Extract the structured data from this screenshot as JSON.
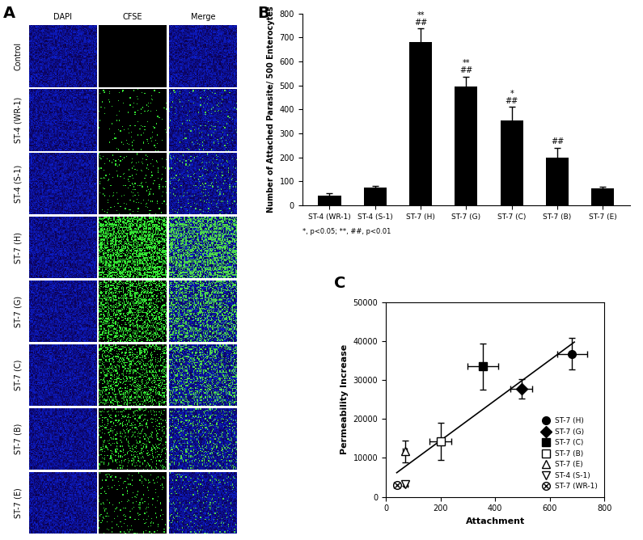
{
  "panel_a": {
    "letter": "A",
    "columns": [
      "DAPI",
      "CFSE",
      "Merge"
    ],
    "rows": [
      "Control",
      "ST-4 (WR-1)",
      "ST-4 (S-1)",
      "ST-7 (H)",
      "ST-7 (G)",
      "ST-7 (C)",
      "ST-7 (B)",
      "ST-7 (E)"
    ]
  },
  "chart_data": [
    {
      "type": "bar",
      "letter": "B",
      "categories": [
        "ST-4 (WR-1)",
        "ST-4 (S-1)",
        "ST-7 (H)",
        "ST-7 (G)",
        "ST-7 (C)",
        "ST-7 (B)",
        "ST-7 (E)"
      ],
      "values": [
        40,
        72,
        682,
        497,
        355,
        200,
        70
      ],
      "errors": [
        10,
        8,
        55,
        40,
        55,
        40,
        8
      ],
      "annotations": [
        null,
        null,
        "**\n##",
        "**\n##",
        "*\n##",
        "##",
        null
      ],
      "color": "#000000",
      "ylabel": "Number of Attached Parasite/ 500 Enterocytes",
      "footnote": "*, p<0.05; **, ##, p<0.01",
      "ylim": [
        0,
        800
      ],
      "yticks": [
        0,
        100,
        200,
        300,
        400,
        500,
        600,
        700,
        800
      ]
    },
    {
      "type": "scatter",
      "letter": "C",
      "xlabel": "Attachment",
      "ylabel": "Permeability Increase",
      "xlim": [
        0,
        800
      ],
      "xticks": [
        0,
        200,
        400,
        600,
        800
      ],
      "ylim": [
        0,
        50000
      ],
      "yticks": [
        0,
        10000,
        20000,
        30000,
        40000,
        50000
      ],
      "legend": "lower right",
      "series": [
        {
          "name": "ST-7 (H)",
          "x": [
            682
          ],
          "values": [
            36800
          ],
          "xerr": [
            55
          ],
          "yerr": [
            4000
          ],
          "marker": "circle",
          "color": "#000000"
        },
        {
          "name": "ST-7 (G)",
          "x": [
            497
          ],
          "values": [
            27800
          ],
          "xerr": [
            40
          ],
          "yerr": [
            2500
          ],
          "marker": "diamond",
          "color": "#000000"
        },
        {
          "name": "ST-7 (C)",
          "x": [
            355
          ],
          "values": [
            33500
          ],
          "xerr": [
            55
          ],
          "yerr": [
            6000
          ],
          "marker": "square",
          "color": "#000000"
        },
        {
          "name": "ST-7 (B)",
          "x": [
            200
          ],
          "values": [
            14200
          ],
          "xerr": [
            40
          ],
          "yerr": [
            4800
          ],
          "marker": "square",
          "color": "#ffffff"
        },
        {
          "name": "ST-7 (E)",
          "x": [
            70
          ],
          "values": [
            11700
          ],
          "xerr": [
            8
          ],
          "yerr": [
            2800
          ],
          "marker": "triangle_up",
          "color": "#ffffff"
        },
        {
          "name": "ST-4 (S-1)",
          "x": [
            72
          ],
          "values": [
            3300
          ],
          "xerr": [
            8
          ],
          "yerr": [
            500
          ],
          "marker": "triangle_down",
          "color": "#ffffff"
        },
        {
          "name": "ST-7 (WR-1)",
          "x": [
            40
          ],
          "values": [
            3000
          ],
          "xerr": [
            10
          ],
          "yerr": [
            500
          ],
          "marker": "circle_x",
          "color": "#ffffff"
        }
      ],
      "trendline": {
        "x": [
          40,
          690
        ],
        "values": [
          6200,
          39800
        ]
      }
    }
  ]
}
